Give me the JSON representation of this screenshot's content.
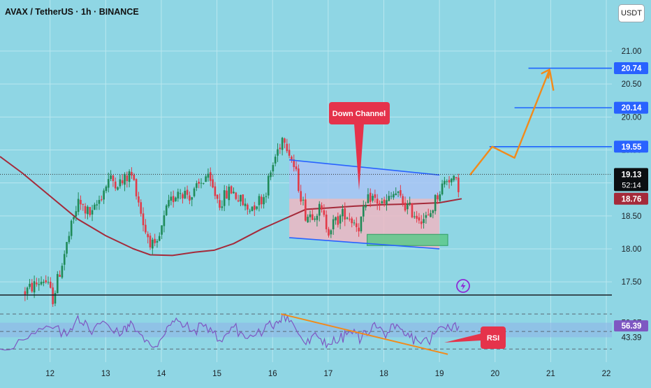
{
  "header": {
    "title": "AVAX / TetherUS · 1h · BINANCE",
    "currency": "USDT"
  },
  "colors": {
    "background": "#8fd6e4",
    "grid": "#b9e7ef",
    "bull": "#1f8a57",
    "bear": "#e23a48",
    "ma": "#a52a3a",
    "channel_line": "#2962ff",
    "target_line": "#1e63ff",
    "projection": "#f28a1a",
    "rsi": "#7e57c2",
    "rsi_trend": "#f28a1a",
    "callout": "#e5334b"
  },
  "chart_data": [
    {
      "type": "candlestick",
      "symbol": "AVAX / TetherUS",
      "interval": "1h",
      "exchange": "BINANCE",
      "x_ticks": [
        "12",
        "13",
        "14",
        "15",
        "16",
        "17",
        "18",
        "19",
        "20",
        "21",
        "22"
      ],
      "x_range": [
        11.1,
        22.1
      ],
      "ylim": [
        17.3,
        21.35
      ],
      "y_ticks": [
        17.5,
        18.0,
        18.5,
        19.0,
        19.5,
        20.0,
        20.5,
        21.0
      ],
      "y_tick_labels": [
        "17.50",
        "18.00",
        "18.50",
        "19.00",
        "19.50",
        "20.00",
        "20.50",
        "21.00"
      ],
      "grid": true,
      "current_price": {
        "value": 19.13,
        "label": "19.13",
        "countdown": "52:14"
      },
      "moving_average": {
        "last_label": "18.76",
        "points": [
          [
            11.1,
            19.4
          ],
          [
            11.5,
            19.15
          ],
          [
            12.0,
            18.8
          ],
          [
            12.5,
            18.45
          ],
          [
            13.0,
            18.2
          ],
          [
            13.5,
            18.0
          ],
          [
            13.8,
            17.91
          ],
          [
            14.2,
            17.9
          ],
          [
            14.6,
            17.95
          ],
          [
            14.95,
            17.98
          ],
          [
            15.3,
            18.08
          ],
          [
            15.8,
            18.3
          ],
          [
            16.2,
            18.45
          ],
          [
            16.6,
            18.6
          ],
          [
            17.0,
            18.62
          ],
          [
            17.5,
            18.65
          ],
          [
            18.0,
            18.67
          ],
          [
            18.5,
            18.68
          ],
          [
            19.0,
            18.7
          ],
          [
            19.4,
            18.76
          ]
        ]
      },
      "candle_path": [
        [
          11.55,
          17.35
        ],
        [
          11.9,
          17.55
        ],
        [
          12.05,
          17.25
        ],
        [
          12.25,
          17.9
        ],
        [
          12.5,
          18.7
        ],
        [
          12.75,
          18.5
        ],
        [
          13.05,
          19.05
        ],
        [
          13.3,
          19.0
        ],
        [
          13.45,
          19.15
        ],
        [
          13.55,
          18.9
        ],
        [
          13.7,
          18.3
        ],
        [
          13.9,
          17.95
        ],
        [
          14.1,
          18.6
        ],
        [
          14.3,
          18.9
        ],
        [
          14.55,
          18.8
        ],
        [
          14.8,
          19.1
        ],
        [
          15.05,
          18.7
        ],
        [
          15.25,
          18.9
        ],
        [
          15.55,
          18.6
        ],
        [
          15.85,
          18.8
        ],
        [
          16.05,
          19.4
        ],
        [
          16.2,
          19.75
        ],
        [
          16.4,
          19.2
        ],
        [
          16.6,
          18.5
        ],
        [
          16.85,
          18.6
        ],
        [
          17.0,
          18.3
        ],
        [
          17.3,
          18.55
        ],
        [
          17.55,
          18.35
        ],
        [
          17.75,
          18.8
        ],
        [
          18.0,
          18.65
        ],
        [
          18.2,
          18.85
        ],
        [
          18.4,
          18.65
        ],
        [
          18.6,
          18.5
        ],
        [
          18.8,
          18.45
        ],
        [
          18.95,
          18.8
        ],
        [
          19.15,
          19.1
        ],
        [
          19.35,
          18.95
        ]
      ],
      "down_channel": {
        "label": "Down Channel",
        "upper": [
          [
            16.3,
            19.35
          ],
          [
            19.0,
            19.12
          ]
        ],
        "lower": [
          [
            16.3,
            18.17
          ],
          [
            19.0,
            18.0
          ]
        ]
      },
      "support_zone": {
        "x": [
          17.7,
          19.15
        ],
        "y": [
          18.05,
          18.22
        ]
      },
      "targets": [
        {
          "value": 20.74,
          "label": "20.74",
          "x_start": 20.6
        },
        {
          "value": 20.14,
          "label": "20.14",
          "x_start": 20.35
        },
        {
          "value": 19.55,
          "label": "19.55",
          "x_start": 19.9
        }
      ],
      "ma_label": "18.76",
      "projection": [
        [
          19.55,
          19.12
        ],
        [
          19.95,
          19.55
        ],
        [
          20.35,
          19.38
        ],
        [
          20.98,
          20.72
        ],
        [
          21.05,
          20.4
        ]
      ]
    },
    {
      "type": "line",
      "name": "RSI",
      "label": "RSI",
      "x_range": [
        11.1,
        22.1
      ],
      "ylim": [
        15,
        90
      ],
      "levels": [
        59.97,
        43.39
      ],
      "tick_labels": [
        "59.97",
        "56.39",
        "43.39"
      ],
      "current": 56.39,
      "trendline": [
        [
          16.15,
          70
        ],
        [
          19.15,
          24
        ]
      ],
      "path": [
        [
          11.1,
          30
        ],
        [
          11.6,
          42
        ],
        [
          12.0,
          55
        ],
        [
          12.3,
          45
        ],
        [
          12.5,
          68
        ],
        [
          12.7,
          52
        ],
        [
          13.0,
          60
        ],
        [
          13.3,
          48
        ],
        [
          13.45,
          62
        ],
        [
          13.7,
          38
        ],
        [
          13.9,
          33
        ],
        [
          14.1,
          55
        ],
        [
          14.3,
          62
        ],
        [
          14.55,
          50
        ],
        [
          14.8,
          58
        ],
        [
          15.05,
          40
        ],
        [
          15.3,
          55
        ],
        [
          15.55,
          42
        ],
        [
          15.85,
          52
        ],
        [
          16.05,
          60
        ],
        [
          16.2,
          70
        ],
        [
          16.4,
          55
        ],
        [
          16.6,
          35
        ],
        [
          16.8,
          45
        ],
        [
          17.0,
          36
        ],
        [
          17.2,
          40
        ],
        [
          17.4,
          50
        ],
        [
          17.6,
          42
        ],
        [
          17.8,
          58
        ],
        [
          18.0,
          48
        ],
        [
          18.2,
          53
        ],
        [
          18.4,
          45
        ],
        [
          18.6,
          40
        ],
        [
          18.8,
          38
        ],
        [
          18.95,
          50
        ],
        [
          19.15,
          58
        ],
        [
          19.35,
          56
        ]
      ]
    }
  ]
}
